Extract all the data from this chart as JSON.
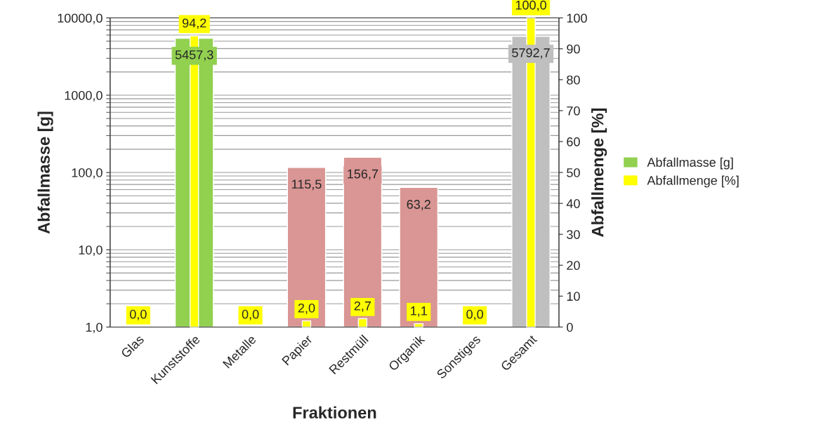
{
  "chart_data": {
    "type": "bar",
    "xlabel": "Fraktionen",
    "ylabel": "Abfallmasse [g]",
    "y2label": "Abfallmenge [%]",
    "categories": [
      "Glas",
      "Kunststoffe",
      "Metalle",
      "Papier",
      "Restmüll",
      "Organik",
      "Sonstiges",
      "Gesamt"
    ],
    "series": [
      {
        "name": "Abfallmasse [g]",
        "colors": [
          "#d99694",
          "#92d050",
          "#d99694",
          "#d99694",
          "#d99694",
          "#d99694",
          "#d99694",
          "#bfbfbf"
        ],
        "values": [
          null,
          5457.3,
          null,
          115.5,
          156.7,
          63.2,
          null,
          5792.7
        ],
        "value_labels": [
          null,
          "5457,3",
          null,
          "115,5",
          "156,7",
          "63,2",
          null,
          "5792,7"
        ]
      },
      {
        "name": "Abfallmenge [%]",
        "color": "#ffff00",
        "axis": "y2",
        "values": [
          0.0,
          94.2,
          0.0,
          2.0,
          2.7,
          1.1,
          0.0,
          100.0
        ],
        "value_labels": [
          "0,0",
          "94,2",
          "0,0",
          "2,0",
          "2,7",
          "1,1",
          "0,0",
          "100,0"
        ]
      }
    ],
    "log": "y",
    "ylim": [
      1,
      10000
    ],
    "yticks": [
      {
        "value": 1,
        "label": "1,0"
      },
      {
        "value": 10,
        "label": "10,0"
      },
      {
        "value": 100,
        "label": "100,0"
      },
      {
        "value": 1000,
        "label": "1000,0"
      },
      {
        "value": 10000,
        "label": "10000,0"
      }
    ],
    "y2lim": [
      0,
      100
    ],
    "y2ticks": [
      0,
      10,
      20,
      30,
      40,
      50,
      60,
      70,
      80,
      90,
      100
    ],
    "grid": "y",
    "legend": "right"
  }
}
